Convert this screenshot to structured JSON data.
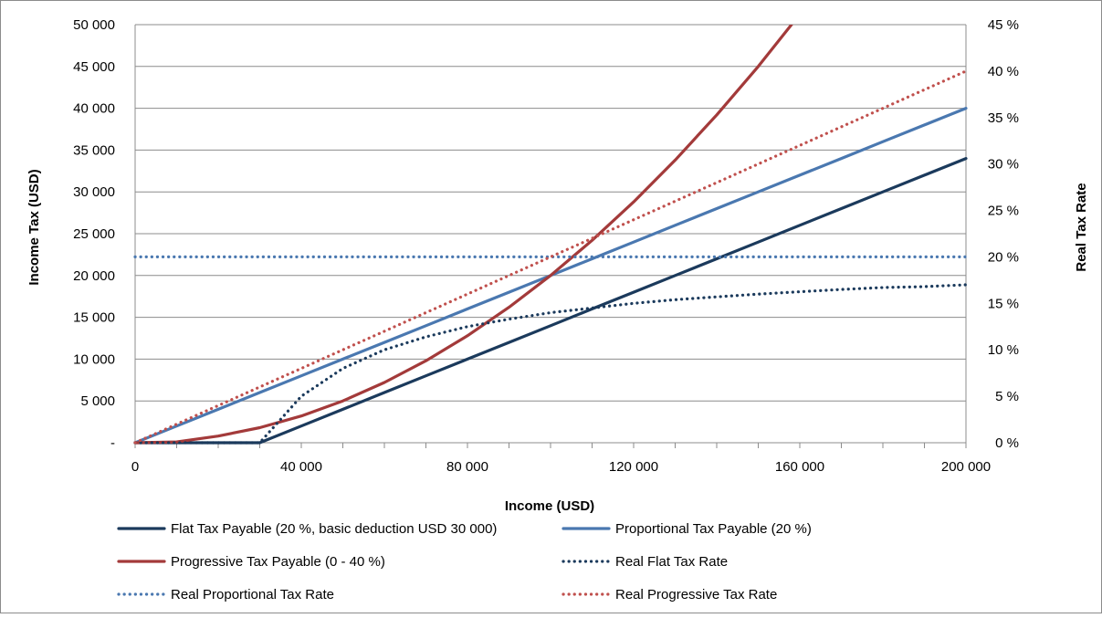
{
  "chart_data": {
    "type": "line",
    "xlabel": "Income (USD)",
    "ylabel": "Income Tax (USD)",
    "y2label": "Real Tax Rate",
    "x_ticks": [
      {
        "value": 0,
        "label": "0"
      },
      {
        "value": 40000,
        "label": "40 000"
      },
      {
        "value": 80000,
        "label": "80 000"
      },
      {
        "value": 120000,
        "label": "120 000"
      },
      {
        "value": 160000,
        "label": "160 000"
      },
      {
        "value": 200000,
        "label": "200 000"
      }
    ],
    "y_ticks": [
      {
        "value": 0,
        "label": "-"
      },
      {
        "value": 5000,
        "label": "5 000"
      },
      {
        "value": 10000,
        "label": "10 000"
      },
      {
        "value": 15000,
        "label": "15 000"
      },
      {
        "value": 20000,
        "label": "20 000"
      },
      {
        "value": 25000,
        "label": "25 000"
      },
      {
        "value": 30000,
        "label": "30 000"
      },
      {
        "value": 35000,
        "label": "35 000"
      },
      {
        "value": 40000,
        "label": "40 000"
      },
      {
        "value": 45000,
        "label": "45 000"
      },
      {
        "value": 50000,
        "label": "50 000"
      }
    ],
    "y2_ticks": [
      {
        "value": 0,
        "label": "0 %"
      },
      {
        "value": 5,
        "label": "5 %"
      },
      {
        "value": 10,
        "label": "10 %"
      },
      {
        "value": 15,
        "label": "15 %"
      },
      {
        "value": 20,
        "label": "20 %"
      },
      {
        "value": 25,
        "label": "25 %"
      },
      {
        "value": 30,
        "label": "30 %"
      },
      {
        "value": 35,
        "label": "35 %"
      },
      {
        "value": 40,
        "label": "40 %"
      },
      {
        "value": 45,
        "label": "45 %"
      }
    ],
    "xlim": [
      0,
      200000
    ],
    "ylim": [
      0,
      50000
    ],
    "y2lim": [
      0,
      45
    ],
    "grid": "horizontal",
    "legend_position": "bottom",
    "series": [
      {
        "name": "Flat Tax Payable (20 %, basic deduction USD 30 000)",
        "axis": "left",
        "style": "solid",
        "color": "#1b3a5c",
        "points": [
          [
            0,
            0
          ],
          [
            10000,
            0
          ],
          [
            20000,
            0
          ],
          [
            30000,
            0
          ],
          [
            40000,
            2000
          ],
          [
            50000,
            4000
          ],
          [
            60000,
            6000
          ],
          [
            70000,
            8000
          ],
          [
            80000,
            10000
          ],
          [
            90000,
            12000
          ],
          [
            100000,
            14000
          ],
          [
            110000,
            16000
          ],
          [
            120000,
            18000
          ],
          [
            130000,
            20000
          ],
          [
            140000,
            22000
          ],
          [
            150000,
            24000
          ],
          [
            160000,
            26000
          ],
          [
            170000,
            28000
          ],
          [
            180000,
            30000
          ],
          [
            190000,
            32000
          ],
          [
            200000,
            34000
          ]
        ]
      },
      {
        "name": "Proportional Tax Payable (20 %)",
        "axis": "left",
        "style": "solid",
        "color": "#4a78b0",
        "points": [
          [
            0,
            0
          ],
          [
            10000,
            2000
          ],
          [
            20000,
            4000
          ],
          [
            30000,
            6000
          ],
          [
            40000,
            8000
          ],
          [
            50000,
            10000
          ],
          [
            60000,
            12000
          ],
          [
            70000,
            14000
          ],
          [
            80000,
            16000
          ],
          [
            90000,
            18000
          ],
          [
            100000,
            20000
          ],
          [
            110000,
            22000
          ],
          [
            120000,
            24000
          ],
          [
            130000,
            26000
          ],
          [
            140000,
            28000
          ],
          [
            150000,
            30000
          ],
          [
            160000,
            32000
          ],
          [
            170000,
            34000
          ],
          [
            180000,
            36000
          ],
          [
            190000,
            38000
          ],
          [
            200000,
            40000
          ]
        ]
      },
      {
        "name": "Progressive Tax Payable (0 - 40 %)",
        "axis": "left",
        "style": "solid",
        "color": "#a33a3a",
        "points": [
          [
            0,
            0
          ],
          [
            10000,
            100
          ],
          [
            20000,
            800
          ],
          [
            30000,
            1800
          ],
          [
            40000,
            3200
          ],
          [
            50000,
            5000
          ],
          [
            60000,
            7200
          ],
          [
            70000,
            9800
          ],
          [
            80000,
            12800
          ],
          [
            90000,
            16200
          ],
          [
            100000,
            20000
          ],
          [
            110000,
            24200
          ],
          [
            120000,
            28800
          ],
          [
            130000,
            33800
          ],
          [
            140000,
            39200
          ],
          [
            150000,
            45000
          ],
          [
            158000,
            50000
          ]
        ]
      },
      {
        "name": "Real Flat Tax Rate",
        "axis": "right",
        "style": "dotted",
        "color": "#1b3a5c",
        "points": [
          [
            0,
            0
          ],
          [
            10000,
            0
          ],
          [
            20000,
            0
          ],
          [
            30000,
            0
          ],
          [
            40000,
            5
          ],
          [
            50000,
            8
          ],
          [
            60000,
            10
          ],
          [
            70000,
            11.4
          ],
          [
            80000,
            12.5
          ],
          [
            90000,
            13.3
          ],
          [
            100000,
            14
          ],
          [
            110000,
            14.5
          ],
          [
            120000,
            15
          ],
          [
            130000,
            15.4
          ],
          [
            140000,
            15.7
          ],
          [
            150000,
            16
          ],
          [
            160000,
            16.25
          ],
          [
            170000,
            16.5
          ],
          [
            180000,
            16.7
          ],
          [
            190000,
            16.8
          ],
          [
            200000,
            17
          ]
        ]
      },
      {
        "name": "Real Proportional Tax Rate",
        "axis": "right",
        "style": "dotted",
        "color": "#4a78b0",
        "points": [
          [
            0,
            20
          ],
          [
            200000,
            20
          ]
        ]
      },
      {
        "name": "Real Progressive Tax Rate",
        "axis": "right",
        "style": "dotted",
        "color": "#c0504d",
        "points": [
          [
            0,
            0
          ],
          [
            200000,
            40
          ]
        ]
      }
    ]
  }
}
